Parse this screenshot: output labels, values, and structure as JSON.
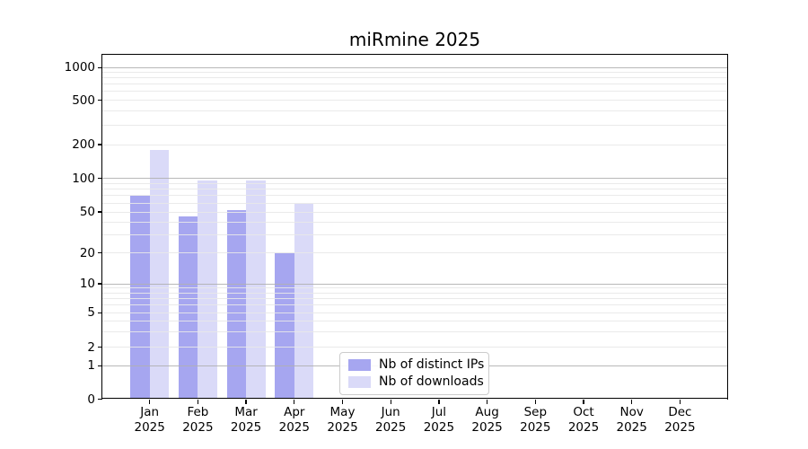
{
  "chart_data": {
    "type": "bar",
    "title": "miRmine 2025",
    "categories": [
      "Jan",
      "Feb",
      "Mar",
      "Apr",
      "May",
      "Jun",
      "Jul",
      "Aug",
      "Sep",
      "Oct",
      "Nov",
      "Dec"
    ],
    "x_year_line": "2025",
    "series": [
      {
        "name": "Nb of distinct IPs",
        "color": "#a6a6f0",
        "values": [
          70,
          45,
          52,
          20,
          null,
          null,
          null,
          null,
          null,
          null,
          null,
          null
        ]
      },
      {
        "name": "Nb of downloads",
        "color": "#dadaf8",
        "values": [
          178,
          96,
          96,
          59,
          null,
          null,
          null,
          null,
          null,
          null,
          null,
          null
        ]
      }
    ],
    "y_ticks": [
      0,
      1,
      2,
      5,
      10,
      20,
      50,
      100,
      200,
      500,
      1000
    ],
    "y_scale": "symlog",
    "ylim": [
      0,
      1300
    ],
    "xlabel": "",
    "ylabel": "",
    "grid": true,
    "legend_position": "lower center",
    "colors": {
      "background": "#ffffff",
      "spine": "#000000",
      "grid_major": "#b0b0b0",
      "grid_minor": "#e8e8e8",
      "legend_border": "#cccccc"
    }
  }
}
